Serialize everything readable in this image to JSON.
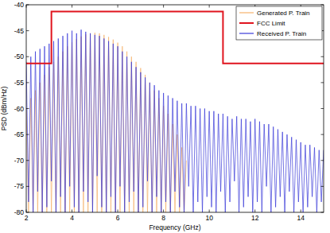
{
  "chart_data": {
    "type": "line",
    "xlabel": "Frequency (GHz)",
    "ylabel": "PSD (dBm/Hz)",
    "xlim": [
      2,
      15
    ],
    "ylim": [
      -80,
      -40
    ],
    "xticks": [
      2,
      4,
      6,
      8,
      10,
      12,
      14
    ],
    "yticks": [
      -80,
      -75,
      -70,
      -65,
      -60,
      -55,
      -50,
      -45,
      -40
    ],
    "grid": false,
    "legend": "upper right",
    "series": [
      {
        "name": "Generated P. Train",
        "color": "#f5b26b",
        "x": [
          2.0,
          2.1,
          2.2,
          2.3,
          2.4,
          2.5,
          2.6,
          2.7,
          2.8,
          2.9,
          3.0,
          3.1,
          3.2,
          3.3,
          3.4,
          3.5,
          3.6,
          3.7,
          3.8,
          3.9,
          4.0,
          4.1,
          4.2,
          4.3,
          4.4,
          4.5,
          4.6,
          4.7,
          4.8,
          4.9,
          5.0,
          5.1,
          5.2,
          5.3,
          5.4,
          5.5,
          5.6,
          5.7,
          5.8,
          5.9,
          6.0,
          6.1,
          6.2,
          6.3,
          6.4,
          6.5,
          6.6,
          6.7,
          6.8,
          6.9,
          7.0,
          7.1,
          7.2,
          7.3,
          7.4,
          7.5,
          7.6,
          7.7,
          7.8,
          7.9,
          8.0,
          8.1,
          8.2,
          8.3,
          8.4,
          8.5,
          8.6,
          8.7,
          8.8,
          8.9,
          9.0
        ],
        "values": [
          -60,
          -80,
          -58,
          -80,
          -56.5,
          -80,
          -55,
          -80,
          -53.5,
          -80,
          -52,
          -80,
          -51,
          -80,
          -50,
          -80,
          -49,
          -80,
          -48,
          -80,
          -47.2,
          -80,
          -46.6,
          -80,
          -46.1,
          -80,
          -45.7,
          -80,
          -45.5,
          -80,
          -45.4,
          -80,
          -45.5,
          -80,
          -45.8,
          -80,
          -46.2,
          -80,
          -46.7,
          -80,
          -47.3,
          -80,
          -48,
          -80,
          -49,
          -80,
          -50,
          -80,
          -51,
          -80,
          -52.2,
          -80,
          -53.5,
          -80,
          -55,
          -80,
          -56.5,
          -80,
          -58,
          -80,
          -59.5,
          -80,
          -61,
          -80,
          -63,
          -80,
          -65,
          -80,
          -67.5,
          -80,
          -70
        ]
      },
      {
        "name": "FCC Limit",
        "color": "#e0141e",
        "x": [
          2,
          3.1,
          3.1,
          10.6,
          10.6,
          15
        ],
        "values": [
          -51.3,
          -51.3,
          -41.3,
          -41.3,
          -51.3,
          -51.3
        ]
      },
      {
        "name": "Received P. Train",
        "color": "#3a3ad8",
        "x": [
          2.0,
          2.1,
          2.2,
          2.3,
          2.4,
          2.5,
          2.6,
          2.7,
          2.8,
          2.9,
          3.0,
          3.1,
          3.2,
          3.3,
          3.4,
          3.5,
          3.6,
          3.7,
          3.8,
          3.9,
          4.0,
          4.1,
          4.2,
          4.3,
          4.4,
          4.5,
          4.6,
          4.7,
          4.8,
          4.9,
          5.0,
          5.1,
          5.2,
          5.3,
          5.4,
          5.5,
          5.6,
          5.7,
          5.8,
          5.9,
          6.0,
          6.1,
          6.2,
          6.3,
          6.4,
          6.5,
          6.6,
          6.7,
          6.8,
          6.9,
          7.0,
          7.1,
          7.2,
          7.3,
          7.4,
          7.5,
          7.6,
          7.7,
          7.8,
          7.9,
          8.0,
          8.1,
          8.2,
          8.3,
          8.4,
          8.5,
          8.6,
          8.7,
          8.8,
          8.9,
          9.0,
          9.1,
          9.2,
          9.3,
          9.4,
          9.5,
          9.6,
          9.7,
          9.8,
          9.9,
          10.0,
          10.1,
          10.2,
          10.3,
          10.4,
          10.5,
          10.6,
          10.7,
          10.8,
          10.9,
          11.0,
          11.1,
          11.2,
          11.3,
          11.4,
          11.5,
          11.6,
          11.7,
          11.8,
          11.9,
          12.0,
          12.1,
          12.2,
          12.3,
          12.4,
          12.5,
          12.6,
          12.7,
          12.8,
          12.9,
          13.0,
          13.1,
          13.2,
          13.3,
          13.4,
          13.5,
          13.6,
          13.7,
          13.8,
          13.9,
          14.0,
          14.1,
          14.2,
          14.3,
          14.4,
          14.5,
          14.6,
          14.7,
          14.8,
          14.9,
          15.0
        ],
        "values": [
          -51,
          -78,
          -50,
          -80,
          -49,
          -76,
          -48.5,
          -80,
          -48,
          -79,
          -47.5,
          -74,
          -47,
          -80,
          -46.5,
          -77,
          -46,
          -80,
          -45.5,
          -75,
          -45,
          -79,
          -45.5,
          -80,
          -44.8,
          -76,
          -45.2,
          -78,
          -45.5,
          -80,
          -45.8,
          -73,
          -46,
          -79,
          -46.5,
          -80,
          -47,
          -77,
          -47.5,
          -80,
          -48,
          -75,
          -49,
          -80,
          -50,
          -78,
          -51,
          -76,
          -52,
          -80,
          -53,
          -79,
          -54,
          -74,
          -55,
          -80,
          -55.5,
          -77,
          -56.5,
          -80,
          -57,
          -78,
          -57.5,
          -80,
          -58,
          -76,
          -58.5,
          -79,
          -59,
          -80,
          -59,
          -75,
          -59.5,
          -80,
          -59.5,
          -78,
          -60,
          -80,
          -60,
          -77,
          -60.5,
          -79,
          -60.5,
          -80,
          -61,
          -76,
          -61,
          -80,
          -61.5,
          -78,
          -62,
          -74,
          -61.5,
          -80,
          -62,
          -79,
          -62,
          -77,
          -62.5,
          -80,
          -62,
          -78,
          -62.5,
          -80,
          -63,
          -75,
          -63,
          -80,
          -63.5,
          -79,
          -64,
          -77,
          -64.5,
          -80,
          -65,
          -76,
          -65.5,
          -80,
          -66,
          -78,
          -66.5,
          -80,
          -67,
          -79,
          -67,
          -77,
          -67.5,
          -80,
          -68,
          -78,
          -68
        ]
      }
    ]
  }
}
